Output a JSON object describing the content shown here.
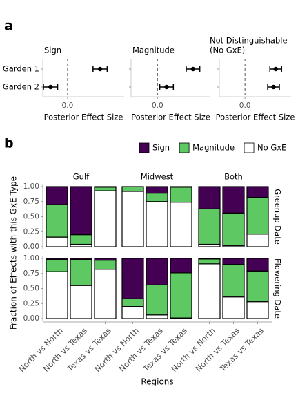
{
  "chart_data": [
    {
      "type": "dot",
      "label": "a",
      "title": [
        "Sign"
      ],
      "categories": [
        "Garden 1",
        "Garden 2"
      ],
      "values": [
        0.46,
        -0.24
      ],
      "errors": [
        0.1,
        0.1
      ],
      "xlim": [
        -0.35,
        0.8
      ],
      "xticks": [
        {
          "value": 0,
          "label": "0.0"
        }
      ],
      "xlabel": "Posterior Effect Size"
    },
    {
      "type": "dot",
      "title": [
        "Magnitude"
      ],
      "values": [
        0.47,
        0.12
      ],
      "errors": [
        0.09,
        0.09
      ],
      "xlim": [
        -0.35,
        0.7
      ],
      "xticks": [
        {
          "value": 0,
          "label": "0.0"
        }
      ],
      "xlabel": "Posterior Effect Size"
    },
    {
      "type": "dot",
      "title": [
        "Not Distinguishable",
        "(No GxE)"
      ],
      "values": [
        0.42,
        0.39
      ],
      "errors": [
        0.08,
        0.08
      ],
      "xlim": [
        -0.35,
        0.63
      ],
      "xticks": [
        {
          "value": 0,
          "label": "0.0"
        }
      ],
      "xlabel": "Posterior Effect Size"
    },
    {
      "type": "stacked_facet",
      "label": "b",
      "columns": [
        "Gulf",
        "Midwest",
        "Both"
      ],
      "rows": [
        "Greenup Date",
        "Flowering Date"
      ],
      "categories": [
        "North vs North",
        "North vs Texas",
        "Texas vs Texas"
      ],
      "series": [
        {
          "name": "Sign",
          "color": "#440154",
          "values": [
            [
              [
                0.3,
                0.8,
                0.01
              ],
              [
                0.0,
                0.11,
                0.01
              ],
              [
                0.37,
                0.44,
                0.18
              ]
            ],
            [
              [
                0.02,
                0.02,
                0.03
              ],
              [
                0.67,
                0.44,
                0.24
              ],
              [
                0.01,
                0.1,
                0.21
              ]
            ]
          ]
        },
        {
          "name": "Magnitude",
          "color": "#5ec962",
          "values": [
            [
              [
                0.54,
                0.16,
                0.06
              ],
              [
                0.08,
                0.14,
                0.25
              ],
              [
                0.59,
                0.54,
                0.61
              ]
            ],
            [
              [
                0.2,
                0.43,
                0.15
              ],
              [
                0.13,
                0.5,
                0.75
              ],
              [
                0.08,
                0.54,
                0.51
              ]
            ]
          ]
        },
        {
          "name": "No GxE",
          "color": "#ffffff",
          "values": [
            [
              [
                0.16,
                0.04,
                0.93
              ],
              [
                0.92,
                0.75,
                0.74
              ],
              [
                0.04,
                0.02,
                0.21
              ]
            ],
            [
              [
                0.78,
                0.55,
                0.82
              ],
              [
                0.2,
                0.06,
                0.01
              ],
              [
                0.91,
                0.36,
                0.28
              ]
            ]
          ]
        }
      ],
      "ylim": [
        0,
        1
      ],
      "yticks": [
        {
          "value": 0,
          "label": "0.00"
        },
        {
          "value": 0.25,
          "label": "0.25"
        },
        {
          "value": 0.5,
          "label": "0.50"
        },
        {
          "value": 0.75,
          "label": "0.75"
        },
        {
          "value": 1,
          "label": "1.00"
        }
      ],
      "ylabel": "Fraction of Effects with this GxE Type",
      "xlabel": "Regions"
    }
  ]
}
